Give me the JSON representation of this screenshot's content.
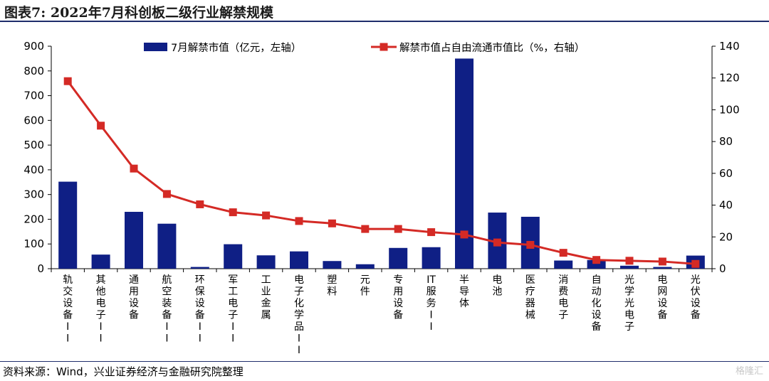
{
  "header": {
    "title": "图表7: 2022年7月科创板二级行业解禁规模"
  },
  "footer": {
    "source": "资料来源：Wind，兴业证券经济与金融研究院整理",
    "watermark": "格隆汇"
  },
  "colors": {
    "bar": "#0f1f85",
    "line": "#d42a25",
    "axis": "#000000"
  },
  "chart_data": {
    "type": "bar",
    "title": "",
    "categories": [
      "轨交设备II",
      "其他电子II",
      "通用设备",
      "航空装备II",
      "环保设备II",
      "军工电子II",
      "工业金属",
      "电子化学品II",
      "塑料",
      "元件",
      "专用设备",
      "IT服务II",
      "半导体",
      "电池",
      "医疗器械",
      "消费电子",
      "自动化设备",
      "光学光电子",
      "电网设备",
      "光伏设备"
    ],
    "series": [
      {
        "name": "7月解禁市值（亿元，左轴）",
        "type": "bar",
        "axis": "left",
        "values": [
          352,
          57,
          230,
          182,
          7,
          99,
          54,
          70,
          31,
          18,
          84,
          87,
          850,
          227,
          210,
          33,
          35,
          12,
          7,
          53
        ]
      },
      {
        "name": "解禁市值占自由流通市值比（%，右轴）",
        "type": "line",
        "axis": "right",
        "values": [
          118,
          90,
          63,
          47,
          40.5,
          35.5,
          33.5,
          30,
          28.5,
          25,
          25,
          23,
          21.5,
          16.5,
          15,
          10,
          5.5,
          5,
          4.5,
          3
        ]
      }
    ],
    "y_left": {
      "range": [
        0,
        900
      ],
      "ticks": [
        "0",
        "100",
        "200",
        "300",
        "400",
        "500",
        "600",
        "700",
        "800",
        "900"
      ]
    },
    "y_right": {
      "range": [
        0,
        140
      ],
      "ticks": [
        "0",
        "20",
        "40",
        "60",
        "80",
        "100",
        "120",
        "140"
      ]
    },
    "grid": false,
    "legend": "top"
  }
}
